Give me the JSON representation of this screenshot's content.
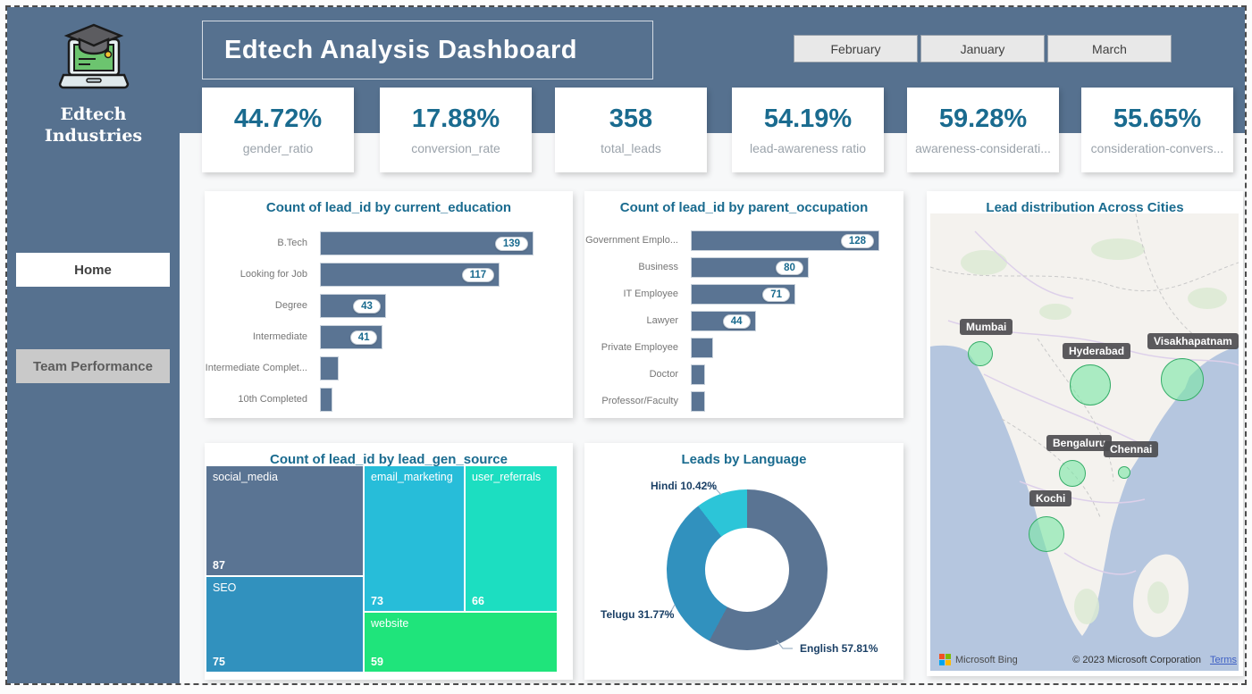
{
  "brand": {
    "line1": "Edtech",
    "line2": "Industries"
  },
  "header": {
    "title": "Edtech Analysis Dashboard",
    "month_buttons": [
      "February",
      "January",
      "March"
    ]
  },
  "sidebar": {
    "nav": [
      {
        "label": "Home",
        "active": true
      },
      {
        "label": "Team Performance",
        "active": false
      }
    ]
  },
  "kpis": [
    {
      "value": "44.72%",
      "label": "gender_ratio"
    },
    {
      "value": "17.88%",
      "label": "conversion_rate"
    },
    {
      "value": "358",
      "label": "total_leads"
    },
    {
      "value": "54.19%",
      "label": "lead-awareness ratio"
    },
    {
      "value": "59.28%",
      "label": "awareness-considerati..."
    },
    {
      "value": "55.65%",
      "label": "consideration-convers..."
    }
  ],
  "colors": {
    "band": "#56718F",
    "bar": "#5A7493",
    "accent_text": "#1A6B8F",
    "kpi_label": "#9BA3AB",
    "bubble_fill": "rgba(124,230,166,0.62)",
    "bubble_border": "#35ad68"
  },
  "chart_data": [
    {
      "id": "education",
      "type": "bar",
      "orientation": "horizontal",
      "title": "Count of lead_id by current_education",
      "categories": [
        "B.Tech",
        "Looking for Job",
        "Degree",
        "Intermediate",
        "Intermediate Complet...",
        "10th Completed"
      ],
      "values": [
        139,
        117,
        43,
        41,
        12,
        8
      ],
      "value_labels_shown": [
        true,
        true,
        true,
        true,
        false,
        false
      ],
      "xlim": [
        0,
        139
      ]
    },
    {
      "id": "occupation",
      "type": "bar",
      "orientation": "horizontal",
      "title": "Count of lead_id by parent_occupation",
      "categories": [
        "Government Emplo...",
        "Business",
        "IT Employee",
        "Lawyer",
        "Private Employee",
        "Doctor",
        "Professor/Faculty"
      ],
      "values": [
        128,
        80,
        71,
        44,
        15,
        10,
        10
      ],
      "value_labels_shown": [
        true,
        true,
        true,
        true,
        false,
        false,
        false
      ],
      "xlim": [
        0,
        128
      ]
    },
    {
      "id": "lead_gen_source",
      "type": "treemap",
      "title": "Count of lead_id by lead_gen_source",
      "items": [
        {
          "label": "social_media",
          "value": 87,
          "color": "#5A7493"
        },
        {
          "label": "SEO",
          "value": 75,
          "color": "#3191BE"
        },
        {
          "label": "email_marketing",
          "value": 73,
          "color": "#27BDD9"
        },
        {
          "label": "user_referrals",
          "value": 66,
          "color": "#1CDEC1"
        },
        {
          "label": "website",
          "value": 59,
          "color": "#1FE47B"
        }
      ]
    },
    {
      "id": "language",
      "type": "pie",
      "title": "Leads by Language",
      "slices": [
        {
          "label": "English",
          "pct": 57.81,
          "display": "English 57.81%",
          "color": "#5A7493"
        },
        {
          "label": "Telugu",
          "pct": 31.77,
          "display": "Telugu 31.77%",
          "color": "#3191BE"
        },
        {
          "label": "Hindi",
          "pct": 10.42,
          "display": "Hindi 10.42%",
          "color": "#2CC5D8"
        }
      ],
      "legend": "callout-labels"
    },
    {
      "id": "cities_map",
      "type": "map",
      "title": "Lead distribution Across Cities",
      "cities": [
        {
          "name": "Mumbai",
          "bubble_radius": 14
        },
        {
          "name": "Hyderabad",
          "bubble_radius": 23
        },
        {
          "name": "Visakhapatnam",
          "bubble_radius": 24
        },
        {
          "name": "Bengaluru",
          "bubble_radius": 15
        },
        {
          "name": "Chennai",
          "bubble_radius": 7
        },
        {
          "name": "Kochi",
          "bubble_radius": 20
        }
      ],
      "attribution": {
        "provider": "Microsoft Bing",
        "copyright": "© 2023 Microsoft Corporation",
        "terms_label": "Terms"
      }
    }
  ]
}
